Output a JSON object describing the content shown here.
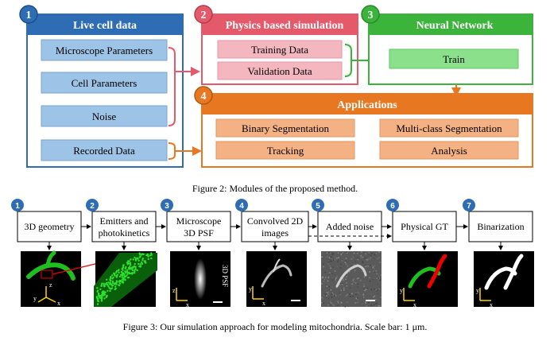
{
  "figure2": {
    "module1": {
      "num": "1",
      "title": "Live cell data",
      "items": [
        "Microscope Parameters",
        "Cell Parameters",
        "Noise",
        "Recorded Data"
      ]
    },
    "module2": {
      "num": "2",
      "title": "Physics based simulation",
      "items": [
        "Training Data",
        "Validation Data"
      ]
    },
    "module3": {
      "num": "3",
      "title": "Neural Network",
      "items": [
        "Train"
      ]
    },
    "module4": {
      "num": "4",
      "title": "Applications",
      "items": [
        "Binary Segmentation",
        "Multi-class Segmentation",
        "Tracking",
        "Analysis"
      ]
    },
    "caption": "Figure 2: Modules of the proposed method.",
    "colors": {
      "blue": "#2e6db4",
      "blue_fill": "#9dc3e6",
      "red": "#e45a6b",
      "pink_fill": "#f4b6bf",
      "green": "#3cb43c",
      "green_fill": "#8be08b",
      "orange": "#e87722",
      "orange_fill": "#f4b183"
    }
  },
  "figure3": {
    "steps": [
      {
        "num": "1",
        "label": "3D geometry"
      },
      {
        "num": "2",
        "label": "Emitters and photokinetics"
      },
      {
        "num": "3",
        "label": "Microscope 3D PSF"
      },
      {
        "num": "4",
        "label": "Convolved 2D images"
      },
      {
        "num": "5",
        "label": "Added noise"
      },
      {
        "num": "6",
        "label": "Physical GT"
      },
      {
        "num": "7",
        "label": "Binarization"
      }
    ],
    "psf_text": "3D PSF",
    "axis": {
      "x": "x",
      "y": "y",
      "z": "z"
    },
    "caption": "Figure 3: Our simulation approach for modeling mitochondria. Scale bar: 1 μm."
  }
}
